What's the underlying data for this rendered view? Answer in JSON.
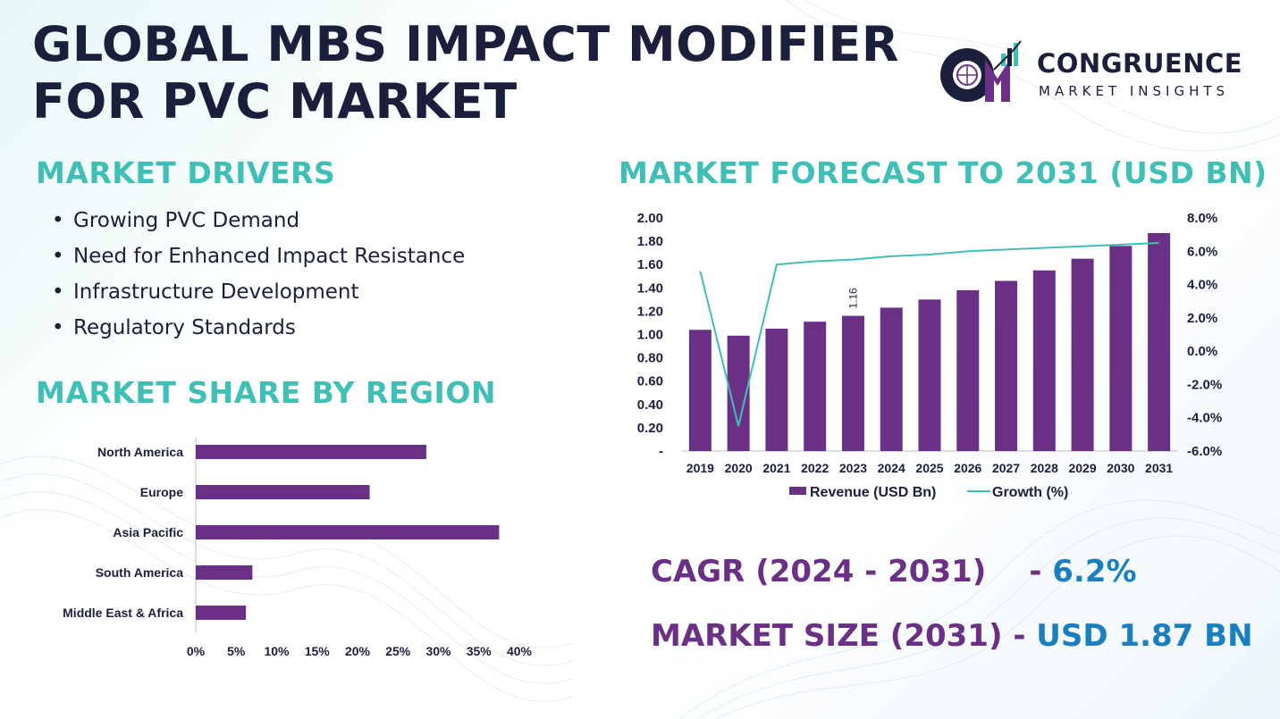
{
  "title": "GLOBAL MBS IMPACT MODIFIER FOR PVC MARKET",
  "logo": {
    "name": "CONGRUENCE",
    "sub": "MARKET INSIGHTS",
    "mark": "CM"
  },
  "colors": {
    "heading": "#3fbfb5",
    "bar": "#6a3085",
    "line": "#3fbfb5",
    "value_blue": "#1a7fbf",
    "title": "#1b1f3b"
  },
  "drivers": {
    "heading": "MARKET DRIVERS",
    "items": [
      "Growing PVC Demand",
      "Need for Enhanced Impact Resistance",
      "Infrastructure Development",
      "Regulatory Standards"
    ]
  },
  "region": {
    "heading": "MARKET SHARE BY REGION"
  },
  "forecast": {
    "heading": "MARKET FORECAST TO 2031 (USD BN)"
  },
  "stats": {
    "cagr_label": "CAGR (2024 - 2031)",
    "cagr_sep": "- ",
    "cagr_value": "6.2%",
    "size_label": "MARKET SIZE (2031)",
    "size_sep": " - ",
    "size_value": "USD 1.87 BN"
  },
  "chart_data": [
    {
      "type": "bar",
      "orientation": "horizontal",
      "categories": [
        "North America",
        "Europe",
        "Asia Pacific",
        "South America",
        "Middle East & Africa"
      ],
      "values": [
        28.5,
        21.5,
        37.5,
        7,
        6.2
      ],
      "x_ticks": [
        "0%",
        "5%",
        "10%",
        "15%",
        "20%",
        "25%",
        "30%",
        "35%",
        "40%"
      ],
      "xlim": [
        0,
        40
      ]
    },
    {
      "type": "bar",
      "categories": [
        "2019",
        "2020",
        "2021",
        "2022",
        "2023",
        "2024",
        "2025",
        "2026",
        "2027",
        "2028",
        "2029",
        "2030",
        "2031"
      ],
      "series": [
        {
          "name": "Revenue (USD Bn)",
          "type": "bar",
          "axis": "left",
          "values": [
            1.04,
            0.99,
            1.05,
            1.11,
            1.16,
            1.23,
            1.3,
            1.38,
            1.46,
            1.55,
            1.65,
            1.76,
            1.87
          ]
        },
        {
          "name": "Growth (%)",
          "type": "line",
          "axis": "right",
          "values": [
            4.8,
            -4.5,
            5.2,
            5.4,
            5.5,
            5.7,
            5.8,
            6.0,
            6.1,
            6.2,
            6.3,
            6.4,
            6.5
          ]
        }
      ],
      "data_labels": [
        {
          "category": "2023",
          "text": "1.16"
        }
      ],
      "ylim_left": [
        0,
        2.0
      ],
      "left_ticks": [
        "-",
        "0.20",
        "0.40",
        "0.60",
        "0.80",
        "1.00",
        "1.20",
        "1.40",
        "1.60",
        "1.80",
        "2.00"
      ],
      "ylim_right": [
        -6,
        8
      ],
      "right_ticks": [
        "-6.0%",
        "-4.0%",
        "-2.0%",
        "0.0%",
        "2.0%",
        "4.0%",
        "6.0%",
        "8.0%"
      ],
      "legend": "bottom"
    }
  ]
}
